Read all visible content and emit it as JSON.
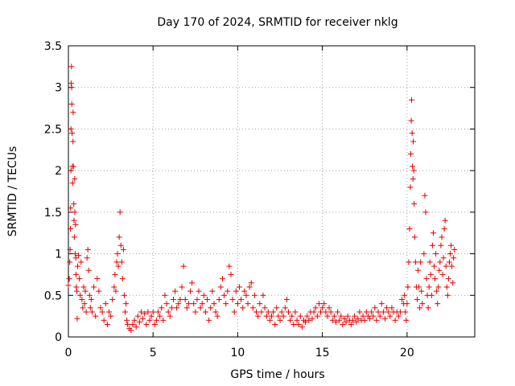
{
  "chart_data": {
    "type": "scatter",
    "title": "Day 170 of 2024, SRMTID for receiver nklg",
    "xlabel": "GPS time / hours",
    "ylabel": "SRMTID / TECUs",
    "xlim": [
      0,
      24
    ],
    "ylim": [
      0,
      3.5
    ],
    "xticks": [
      0,
      5,
      10,
      15,
      20
    ],
    "xtick_labels": [
      "0",
      "5",
      "10",
      "15",
      "20"
    ],
    "yticks": [
      0,
      0.5,
      1,
      1.5,
      2,
      2.5,
      3,
      3.5
    ],
    "ytick_labels": [
      "0",
      "0.5",
      "1",
      "1.5",
      "2",
      "2.5",
      "3",
      "3.5"
    ],
    "grid": true,
    "marker": "+",
    "series": [
      {
        "name": "SRMTID",
        "color": "#e00000",
        "points": [
          [
            0.0,
            0.62
          ],
          [
            0.05,
            0.7
          ],
          [
            0.08,
            0.9
          ],
          [
            0.1,
            1.05
          ],
          [
            0.12,
            1.3
          ],
          [
            0.13,
            1.55
          ],
          [
            0.15,
            2.0
          ],
          [
            0.15,
            2.5
          ],
          [
            0.16,
            3.05
          ],
          [
            0.18,
            3.25
          ],
          [
            0.19,
            3.0
          ],
          [
            0.2,
            2.8
          ],
          [
            0.22,
            2.45
          ],
          [
            0.23,
            2.05
          ],
          [
            0.25,
            1.85
          ],
          [
            0.27,
            2.35
          ],
          [
            0.28,
            2.7
          ],
          [
            0.3,
            2.05
          ],
          [
            0.32,
            1.6
          ],
          [
            0.33,
            1.4
          ],
          [
            0.35,
            1.2
          ],
          [
            0.37,
            1.9
          ],
          [
            0.38,
            1.5
          ],
          [
            0.4,
            1.0
          ],
          [
            0.42,
            1.35
          ],
          [
            0.44,
            0.95
          ],
          [
            0.45,
            0.75
          ],
          [
            0.47,
            0.6
          ],
          [
            0.5,
            0.55
          ],
          [
            0.52,
            0.22
          ],
          [
            0.55,
            0.85
          ],
          [
            0.6,
            0.98
          ],
          [
            0.65,
            0.7
          ],
          [
            0.7,
            0.5
          ],
          [
            0.75,
            0.9
          ],
          [
            0.8,
            0.45
          ],
          [
            0.85,
            0.35
          ],
          [
            0.9,
            0.6
          ],
          [
            0.95,
            0.4
          ],
          [
            1.0,
            0.55
          ],
          [
            1.05,
            0.3
          ],
          [
            1.1,
            0.95
          ],
          [
            1.15,
            1.05
          ],
          [
            1.2,
            0.8
          ],
          [
            1.25,
            0.5
          ],
          [
            1.3,
            0.35
          ],
          [
            1.35,
            0.45
          ],
          [
            1.4,
            0.3
          ],
          [
            1.5,
            0.6
          ],
          [
            1.6,
            0.25
          ],
          [
            1.7,
            0.7
          ],
          [
            1.8,
            0.55
          ],
          [
            1.9,
            0.35
          ],
          [
            2.0,
            0.3
          ],
          [
            2.1,
            0.2
          ],
          [
            2.2,
            0.4
          ],
          [
            2.3,
            0.15
          ],
          [
            2.4,
            0.3
          ],
          [
            2.5,
            0.25
          ],
          [
            2.6,
            0.45
          ],
          [
            2.7,
            0.6
          ],
          [
            2.75,
            0.75
          ],
          [
            2.8,
            0.55
          ],
          [
            2.85,
            0.9
          ],
          [
            2.9,
            1.0
          ],
          [
            2.95,
            0.85
          ],
          [
            3.0,
            1.2
          ],
          [
            3.05,
            1.5
          ],
          [
            3.1,
            1.1
          ],
          [
            3.15,
            0.9
          ],
          [
            3.2,
            0.7
          ],
          [
            3.25,
            1.05
          ],
          [
            3.3,
            0.5
          ],
          [
            3.35,
            0.3
          ],
          [
            3.4,
            0.4
          ],
          [
            3.45,
            0.2
          ],
          [
            3.5,
            0.15
          ],
          [
            3.6,
            0.1
          ],
          [
            3.7,
            0.08
          ],
          [
            3.8,
            0.15
          ],
          [
            3.9,
            0.2
          ],
          [
            4.0,
            0.12
          ],
          [
            4.1,
            0.25
          ],
          [
            4.2,
            0.18
          ],
          [
            4.3,
            0.3
          ],
          [
            4.4,
            0.22
          ],
          [
            4.5,
            0.28
          ],
          [
            4.6,
            0.15
          ],
          [
            4.7,
            0.3
          ],
          [
            4.8,
            0.2
          ],
          [
            4.9,
            0.25
          ],
          [
            5.0,
            0.3
          ],
          [
            5.1,
            0.15
          ],
          [
            5.2,
            0.2
          ],
          [
            5.3,
            0.3
          ],
          [
            5.4,
            0.25
          ],
          [
            5.5,
            0.35
          ],
          [
            5.6,
            0.2
          ],
          [
            5.7,
            0.5
          ],
          [
            5.8,
            0.4
          ],
          [
            5.9,
            0.3
          ],
          [
            6.0,
            0.25
          ],
          [
            6.1,
            0.35
          ],
          [
            6.2,
            0.45
          ],
          [
            6.3,
            0.55
          ],
          [
            6.4,
            0.35
          ],
          [
            6.5,
            0.4
          ],
          [
            6.6,
            0.45
          ],
          [
            6.7,
            0.6
          ],
          [
            6.8,
            0.85
          ],
          [
            6.9,
            0.45
          ],
          [
            7.0,
            0.35
          ],
          [
            7.1,
            0.4
          ],
          [
            7.2,
            0.55
          ],
          [
            7.3,
            0.65
          ],
          [
            7.4,
            0.4
          ],
          [
            7.5,
            0.3
          ],
          [
            7.6,
            0.45
          ],
          [
            7.7,
            0.55
          ],
          [
            7.8,
            0.35
          ],
          [
            7.9,
            0.4
          ],
          [
            8.0,
            0.5
          ],
          [
            8.1,
            0.3
          ],
          [
            8.2,
            0.45
          ],
          [
            8.3,
            0.2
          ],
          [
            8.4,
            0.35
          ],
          [
            8.5,
            0.55
          ],
          [
            8.6,
            0.4
          ],
          [
            8.7,
            0.3
          ],
          [
            8.8,
            0.25
          ],
          [
            8.9,
            0.45
          ],
          [
            9.0,
            0.6
          ],
          [
            9.1,
            0.7
          ],
          [
            9.2,
            0.5
          ],
          [
            9.3,
            0.4
          ],
          [
            9.4,
            0.55
          ],
          [
            9.5,
            0.85
          ],
          [
            9.6,
            0.75
          ],
          [
            9.7,
            0.45
          ],
          [
            9.8,
            0.3
          ],
          [
            9.9,
            0.55
          ],
          [
            10.0,
            0.4
          ],
          [
            10.1,
            0.6
          ],
          [
            10.2,
            0.45
          ],
          [
            10.3,
            0.35
          ],
          [
            10.4,
            0.55
          ],
          [
            10.5,
            0.5
          ],
          [
            10.6,
            0.4
          ],
          [
            10.7,
            0.6
          ],
          [
            10.8,
            0.65
          ],
          [
            10.9,
            0.35
          ],
          [
            11.0,
            0.5
          ],
          [
            11.1,
            0.3
          ],
          [
            11.2,
            0.25
          ],
          [
            11.3,
            0.4
          ],
          [
            11.4,
            0.3
          ],
          [
            11.5,
            0.5
          ],
          [
            11.6,
            0.35
          ],
          [
            11.7,
            0.25
          ],
          [
            11.8,
            0.3
          ],
          [
            11.9,
            0.2
          ],
          [
            12.0,
            0.25
          ],
          [
            12.1,
            0.3
          ],
          [
            12.2,
            0.15
          ],
          [
            12.3,
            0.35
          ],
          [
            12.4,
            0.25
          ],
          [
            12.5,
            0.2
          ],
          [
            12.6,
            0.3
          ],
          [
            12.7,
            0.25
          ],
          [
            12.8,
            0.35
          ],
          [
            12.9,
            0.45
          ],
          [
            13.0,
            0.3
          ],
          [
            13.1,
            0.2
          ],
          [
            13.2,
            0.25
          ],
          [
            13.3,
            0.15
          ],
          [
            13.4,
            0.3
          ],
          [
            13.5,
            0.2
          ],
          [
            13.6,
            0.15
          ],
          [
            13.7,
            0.25
          ],
          [
            13.8,
            0.12
          ],
          [
            13.9,
            0.2
          ],
          [
            14.0,
            0.18
          ],
          [
            14.1,
            0.25
          ],
          [
            14.2,
            0.2
          ],
          [
            14.3,
            0.3
          ],
          [
            14.4,
            0.22
          ],
          [
            14.5,
            0.3
          ],
          [
            14.6,
            0.35
          ],
          [
            14.7,
            0.25
          ],
          [
            14.8,
            0.4
          ],
          [
            14.9,
            0.3
          ],
          [
            15.0,
            0.35
          ],
          [
            15.1,
            0.4
          ],
          [
            15.2,
            0.3
          ],
          [
            15.3,
            0.25
          ],
          [
            15.4,
            0.35
          ],
          [
            15.5,
            0.3
          ],
          [
            15.6,
            0.2
          ],
          [
            15.7,
            0.25
          ],
          [
            15.8,
            0.18
          ],
          [
            15.9,
            0.3
          ],
          [
            16.0,
            0.2
          ],
          [
            16.1,
            0.25
          ],
          [
            16.2,
            0.15
          ],
          [
            16.3,
            0.22
          ],
          [
            16.4,
            0.18
          ],
          [
            16.5,
            0.25
          ],
          [
            16.6,
            0.2
          ],
          [
            16.7,
            0.15
          ],
          [
            16.8,
            0.2
          ],
          [
            16.9,
            0.25
          ],
          [
            17.0,
            0.18
          ],
          [
            17.1,
            0.22
          ],
          [
            17.2,
            0.3
          ],
          [
            17.3,
            0.2
          ],
          [
            17.4,
            0.25
          ],
          [
            17.5,
            0.2
          ],
          [
            17.6,
            0.3
          ],
          [
            17.7,
            0.25
          ],
          [
            17.8,
            0.22
          ],
          [
            17.9,
            0.3
          ],
          [
            18.0,
            0.25
          ],
          [
            18.1,
            0.35
          ],
          [
            18.2,
            0.2
          ],
          [
            18.3,
            0.3
          ],
          [
            18.4,
            0.25
          ],
          [
            18.5,
            0.4
          ],
          [
            18.6,
            0.3
          ],
          [
            18.7,
            0.22
          ],
          [
            18.8,
            0.35
          ],
          [
            18.9,
            0.3
          ],
          [
            19.0,
            0.25
          ],
          [
            19.1,
            0.35
          ],
          [
            19.2,
            0.3
          ],
          [
            19.3,
            0.2
          ],
          [
            19.4,
            0.3
          ],
          [
            19.5,
            0.25
          ],
          [
            19.6,
            0.3
          ],
          [
            19.7,
            0.45
          ],
          [
            19.8,
            0.4
          ],
          [
            19.85,
            0.5
          ],
          [
            19.9,
            0.3
          ],
          [
            19.95,
            0.2
          ],
          [
            20.0,
            0.4
          ],
          [
            20.05,
            0.6
          ],
          [
            20.1,
            0.9
          ],
          [
            20.15,
            1.3
          ],
          [
            20.2,
            1.8
          ],
          [
            20.22,
            2.2
          ],
          [
            20.25,
            2.6
          ],
          [
            20.27,
            2.85
          ],
          [
            20.3,
            2.45
          ],
          [
            20.32,
            2.05
          ],
          [
            20.35,
            1.9
          ],
          [
            20.37,
            2.35
          ],
          [
            20.4,
            2.0
          ],
          [
            20.42,
            1.6
          ],
          [
            20.45,
            1.2
          ],
          [
            20.5,
            0.9
          ],
          [
            20.55,
            0.6
          ],
          [
            20.6,
            0.45
          ],
          [
            20.65,
            0.8
          ],
          [
            20.7,
            0.6
          ],
          [
            20.75,
            0.35
          ],
          [
            20.8,
            0.9
          ],
          [
            20.85,
            0.55
          ],
          [
            20.9,
            0.4
          ],
          [
            21.0,
            1.0
          ],
          [
            21.05,
            1.7
          ],
          [
            21.1,
            1.5
          ],
          [
            21.15,
            0.7
          ],
          [
            21.2,
            0.5
          ],
          [
            21.25,
            0.35
          ],
          [
            21.3,
            0.6
          ],
          [
            21.35,
            0.9
          ],
          [
            21.4,
            0.75
          ],
          [
            21.45,
            0.5
          ],
          [
            21.5,
            1.1
          ],
          [
            21.55,
            1.25
          ],
          [
            21.6,
            0.85
          ],
          [
            21.65,
            0.7
          ],
          [
            21.7,
            1.0
          ],
          [
            21.75,
            0.55
          ],
          [
            21.8,
            0.4
          ],
          [
            21.85,
            0.6
          ],
          [
            21.9,
            0.8
          ],
          [
            21.95,
            0.9
          ],
          [
            22.0,
            1.1
          ],
          [
            22.05,
            1.2
          ],
          [
            22.1,
            0.75
          ],
          [
            22.15,
            0.95
          ],
          [
            22.2,
            1.3
          ],
          [
            22.25,
            1.4
          ],
          [
            22.3,
            0.85
          ],
          [
            22.35,
            0.6
          ],
          [
            22.4,
            0.5
          ],
          [
            22.45,
            0.7
          ],
          [
            22.5,
            0.9
          ],
          [
            22.55,
            1.0
          ],
          [
            22.6,
            1.1
          ],
          [
            22.65,
            0.85
          ],
          [
            22.7,
            0.65
          ],
          [
            22.75,
            0.95
          ],
          [
            22.8,
            1.05
          ]
        ]
      }
    ]
  }
}
